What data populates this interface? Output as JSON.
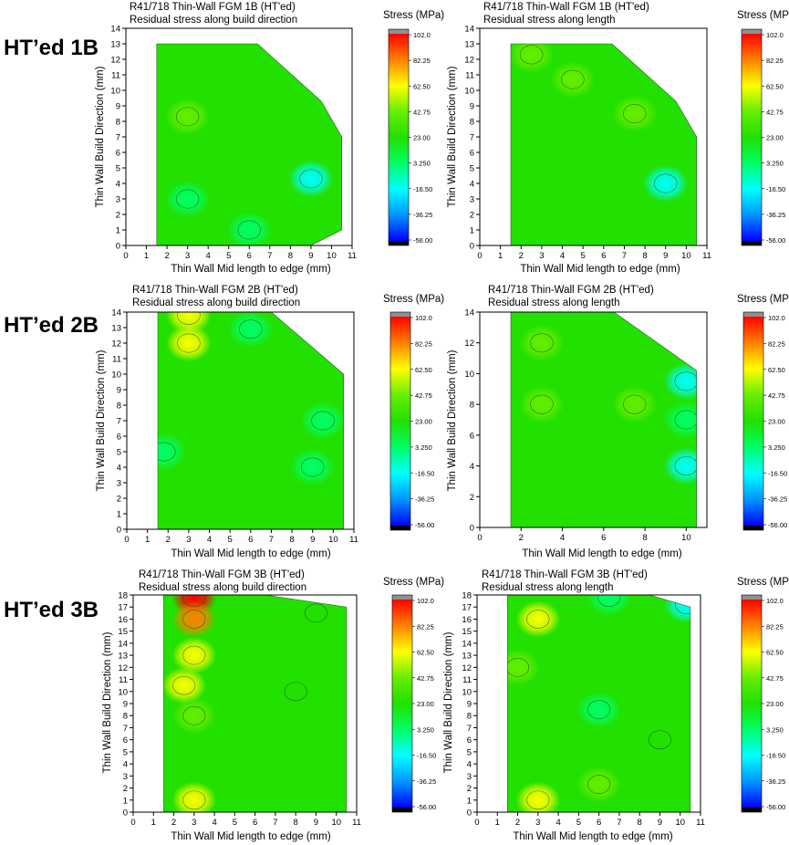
{
  "figure": {
    "row_labels": [
      "HT’ed 1B",
      "HT’ed 2B",
      "HT’ed 3B"
    ],
    "colorbar": {
      "title": "Stress (MPa)",
      "ticks": [
        "102.0",
        "82.25",
        "62.50",
        "42.75",
        "23.00",
        "3.250",
        "-16.50",
        "-36.25",
        "-56.00"
      ],
      "colors": [
        "#000000",
        "#0000ff",
        "#0096ff",
        "#00ffff",
        "#00ff66",
        "#22e000",
        "#66ee00",
        "#ffff00",
        "#ff8000",
        "#ff0000",
        "#909090"
      ]
    }
  },
  "chart_data": [
    {
      "type": "heatmap",
      "title": "R41/718 Thin-Wall FGM 1B (HT'ed)",
      "subtitle": "Residual stress along build direction",
      "xlabel": "Thin Wall Mid length to edge (mm)",
      "ylabel": "Thin Wall Build Direction (mm)",
      "xlim": [
        0,
        11
      ],
      "ylim": [
        0,
        14
      ],
      "xticks": [
        "0",
        "1",
        "2",
        "3",
        "4",
        "5",
        "6",
        "7",
        "8",
        "9",
        "10",
        "11"
      ],
      "yticks": [
        "0",
        "1",
        "2",
        "3",
        "4",
        "5",
        "6",
        "7",
        "8",
        "9",
        "10",
        "11",
        "12",
        "13",
        "14"
      ],
      "boundary": [
        [
          1.5,
          0
        ],
        [
          1.5,
          13
        ],
        [
          6.4,
          13
        ],
        [
          9.5,
          9.3
        ],
        [
          10.5,
          7
        ],
        [
          10.5,
          1
        ],
        [
          9,
          0
        ]
      ],
      "base_stress": 30,
      "features": [
        {
          "x": 3,
          "y": 8.3,
          "stress": 52
        },
        {
          "x": 9,
          "y": 4.3,
          "stress": -20
        },
        {
          "x": 3,
          "y": 3,
          "stress": 12
        },
        {
          "x": 6,
          "y": 1,
          "stress": 12
        }
      ]
    },
    {
      "type": "heatmap",
      "title": "R41/718 Thin-Wall FGM 1B (HT'ed)",
      "subtitle": "Residual stress along length",
      "xlabel": "Thin Wall Mid length to edge (mm)",
      "ylabel": "Thin Wall Build Direction (mm)",
      "xlim": [
        0,
        11
      ],
      "ylim": [
        0,
        14
      ],
      "xticks": [
        "0",
        "1",
        "2",
        "3",
        "4",
        "5",
        "6",
        "7",
        "8",
        "9",
        "10",
        "11"
      ],
      "yticks": [
        "0",
        "1",
        "2",
        "3",
        "4",
        "5",
        "6",
        "7",
        "8",
        "9",
        "10",
        "11",
        "12",
        "13",
        "14"
      ],
      "boundary": [
        [
          1.5,
          0
        ],
        [
          1.5,
          13
        ],
        [
          6.4,
          13
        ],
        [
          9.5,
          9.3
        ],
        [
          10.5,
          7
        ],
        [
          10.5,
          0
        ]
      ],
      "base_stress": 30,
      "features": [
        {
          "x": 4.5,
          "y": 10.7,
          "stress": 52
        },
        {
          "x": 7.5,
          "y": 8.5,
          "stress": 50
        },
        {
          "x": 2.5,
          "y": 12.3,
          "stress": 48
        },
        {
          "x": 9,
          "y": 4,
          "stress": -15
        }
      ]
    },
    {
      "type": "heatmap",
      "title": "R41/718 Thin-Wall FGM 2B (HT'ed)",
      "subtitle": "Residual stress along build direction",
      "xlabel": "Thin Wall Mid length to edge (mm)",
      "ylabel": "Thin Wall Build Direction (mm)",
      "xlim": [
        0,
        11
      ],
      "ylim": [
        0,
        14
      ],
      "xticks": [
        "0",
        "1",
        "2",
        "3",
        "4",
        "5",
        "6",
        "7",
        "8",
        "9",
        "10",
        "11"
      ],
      "yticks": [
        "0",
        "1",
        "2",
        "3",
        "4",
        "5",
        "6",
        "7",
        "8",
        "9",
        "10",
        "11",
        "12",
        "13",
        "14"
      ],
      "boundary": [
        [
          1.5,
          0
        ],
        [
          1.5,
          14
        ],
        [
          7,
          14
        ],
        [
          10.5,
          10
        ],
        [
          10.5,
          0
        ]
      ],
      "base_stress": 30,
      "features": [
        {
          "x": 3,
          "y": 13.8,
          "stress": 60
        },
        {
          "x": 3,
          "y": 12,
          "stress": 55
        },
        {
          "x": 9.5,
          "y": 7,
          "stress": 5
        },
        {
          "x": 1.8,
          "y": 5,
          "stress": 8
        },
        {
          "x": 9,
          "y": 4,
          "stress": 8
        },
        {
          "x": 6,
          "y": 12.9,
          "stress": 10
        }
      ]
    },
    {
      "type": "heatmap",
      "title": "R41/718 Thin-Wall FGM 2B (HT'ed)",
      "subtitle": "Residual stress along length",
      "xlabel": "Thin Wall Mid length to edge (mm)",
      "ylabel": "Thin Wall Build Direction (mm)",
      "xlim": [
        0,
        11
      ],
      "ylim": [
        0,
        14
      ],
      "xticks": [
        "0",
        "2",
        "4",
        "6",
        "8",
        "10"
      ],
      "yticks": [
        "0",
        "2",
        "4",
        "6",
        "8",
        "10",
        "12",
        "14"
      ],
      "boundary": [
        [
          1.5,
          0
        ],
        [
          1.5,
          14
        ],
        [
          6.5,
          14
        ],
        [
          10.5,
          10.2
        ],
        [
          10.5,
          0
        ]
      ],
      "base_stress": 30,
      "features": [
        {
          "x": 3,
          "y": 12,
          "stress": 50
        },
        {
          "x": 3,
          "y": 8,
          "stress": 52
        },
        {
          "x": 7.5,
          "y": 8,
          "stress": 48
        },
        {
          "x": 10,
          "y": 9.5,
          "stress": -16
        },
        {
          "x": 10,
          "y": 7,
          "stress": -5
        },
        {
          "x": 10,
          "y": 4,
          "stress": -10
        }
      ]
    },
    {
      "type": "heatmap",
      "title": "R41/718 Thin-Wall FGM 3B (HT'ed)",
      "subtitle": "Residual stress along build direction",
      "xlabel": "Thin Wall Mid length to edge (mm)",
      "ylabel": "Thin Wall Build Direction (mm)",
      "xlim": [
        0,
        11
      ],
      "ylim": [
        0,
        18
      ],
      "xticks": [
        "0",
        "1",
        "2",
        "3",
        "4",
        "5",
        "6",
        "7",
        "8",
        "9",
        "10",
        "11"
      ],
      "yticks": [
        "0",
        "1",
        "2",
        "3",
        "4",
        "5",
        "6",
        "7",
        "8",
        "9",
        "10",
        "11",
        "12",
        "13",
        "14",
        "15",
        "16",
        "17",
        "18"
      ],
      "boundary": [
        [
          1.5,
          0
        ],
        [
          1.5,
          18
        ],
        [
          6.5,
          18
        ],
        [
          10.5,
          17
        ],
        [
          10.5,
          0
        ]
      ],
      "base_stress": 30,
      "features": [
        {
          "x": 3,
          "y": 17.8,
          "stress": 98
        },
        {
          "x": 3,
          "y": 16,
          "stress": 80
        },
        {
          "x": 3,
          "y": 13,
          "stress": 62
        },
        {
          "x": 2.5,
          "y": 10.5,
          "stress": 55
        },
        {
          "x": 3,
          "y": 8,
          "stress": 52
        },
        {
          "x": 8,
          "y": 10,
          "stress": 15
        },
        {
          "x": 9,
          "y": 16.5,
          "stress": 18
        },
        {
          "x": 3,
          "y": 1,
          "stress": 55
        }
      ]
    },
    {
      "type": "heatmap",
      "title": "R41/718 Thin-Wall FGM 3B (HT'ed)",
      "subtitle": "Residual stress along length",
      "xlabel": "Thin Wall Mid length to edge (mm)",
      "ylabel": "Thin Wall Build Direction (mm)",
      "xlim": [
        0,
        11
      ],
      "ylim": [
        0,
        18
      ],
      "xticks": [
        "0",
        "1",
        "2",
        "3",
        "4",
        "5",
        "6",
        "7",
        "8",
        "9",
        "10",
        "11"
      ],
      "yticks": [
        "0",
        "1",
        "2",
        "3",
        "4",
        "5",
        "6",
        "7",
        "8",
        "9",
        "10",
        "11",
        "12",
        "13",
        "14",
        "15",
        "16",
        "17",
        "18"
      ],
      "boundary": [
        [
          1.5,
          0
        ],
        [
          1.5,
          18
        ],
        [
          8.5,
          18
        ],
        [
          10.5,
          17
        ],
        [
          10.5,
          0
        ]
      ],
      "base_stress": 30,
      "features": [
        {
          "x": 3,
          "y": 16,
          "stress": 58
        },
        {
          "x": 2,
          "y": 12,
          "stress": 52
        },
        {
          "x": 6,
          "y": 8.5,
          "stress": 2
        },
        {
          "x": 6.5,
          "y": 17.8,
          "stress": 0
        },
        {
          "x": 10.3,
          "y": 17.2,
          "stress": -25
        },
        {
          "x": 3,
          "y": 1,
          "stress": 58
        },
        {
          "x": 6,
          "y": 2.3,
          "stress": 50
        },
        {
          "x": 9,
          "y": 6,
          "stress": 18
        }
      ]
    }
  ]
}
